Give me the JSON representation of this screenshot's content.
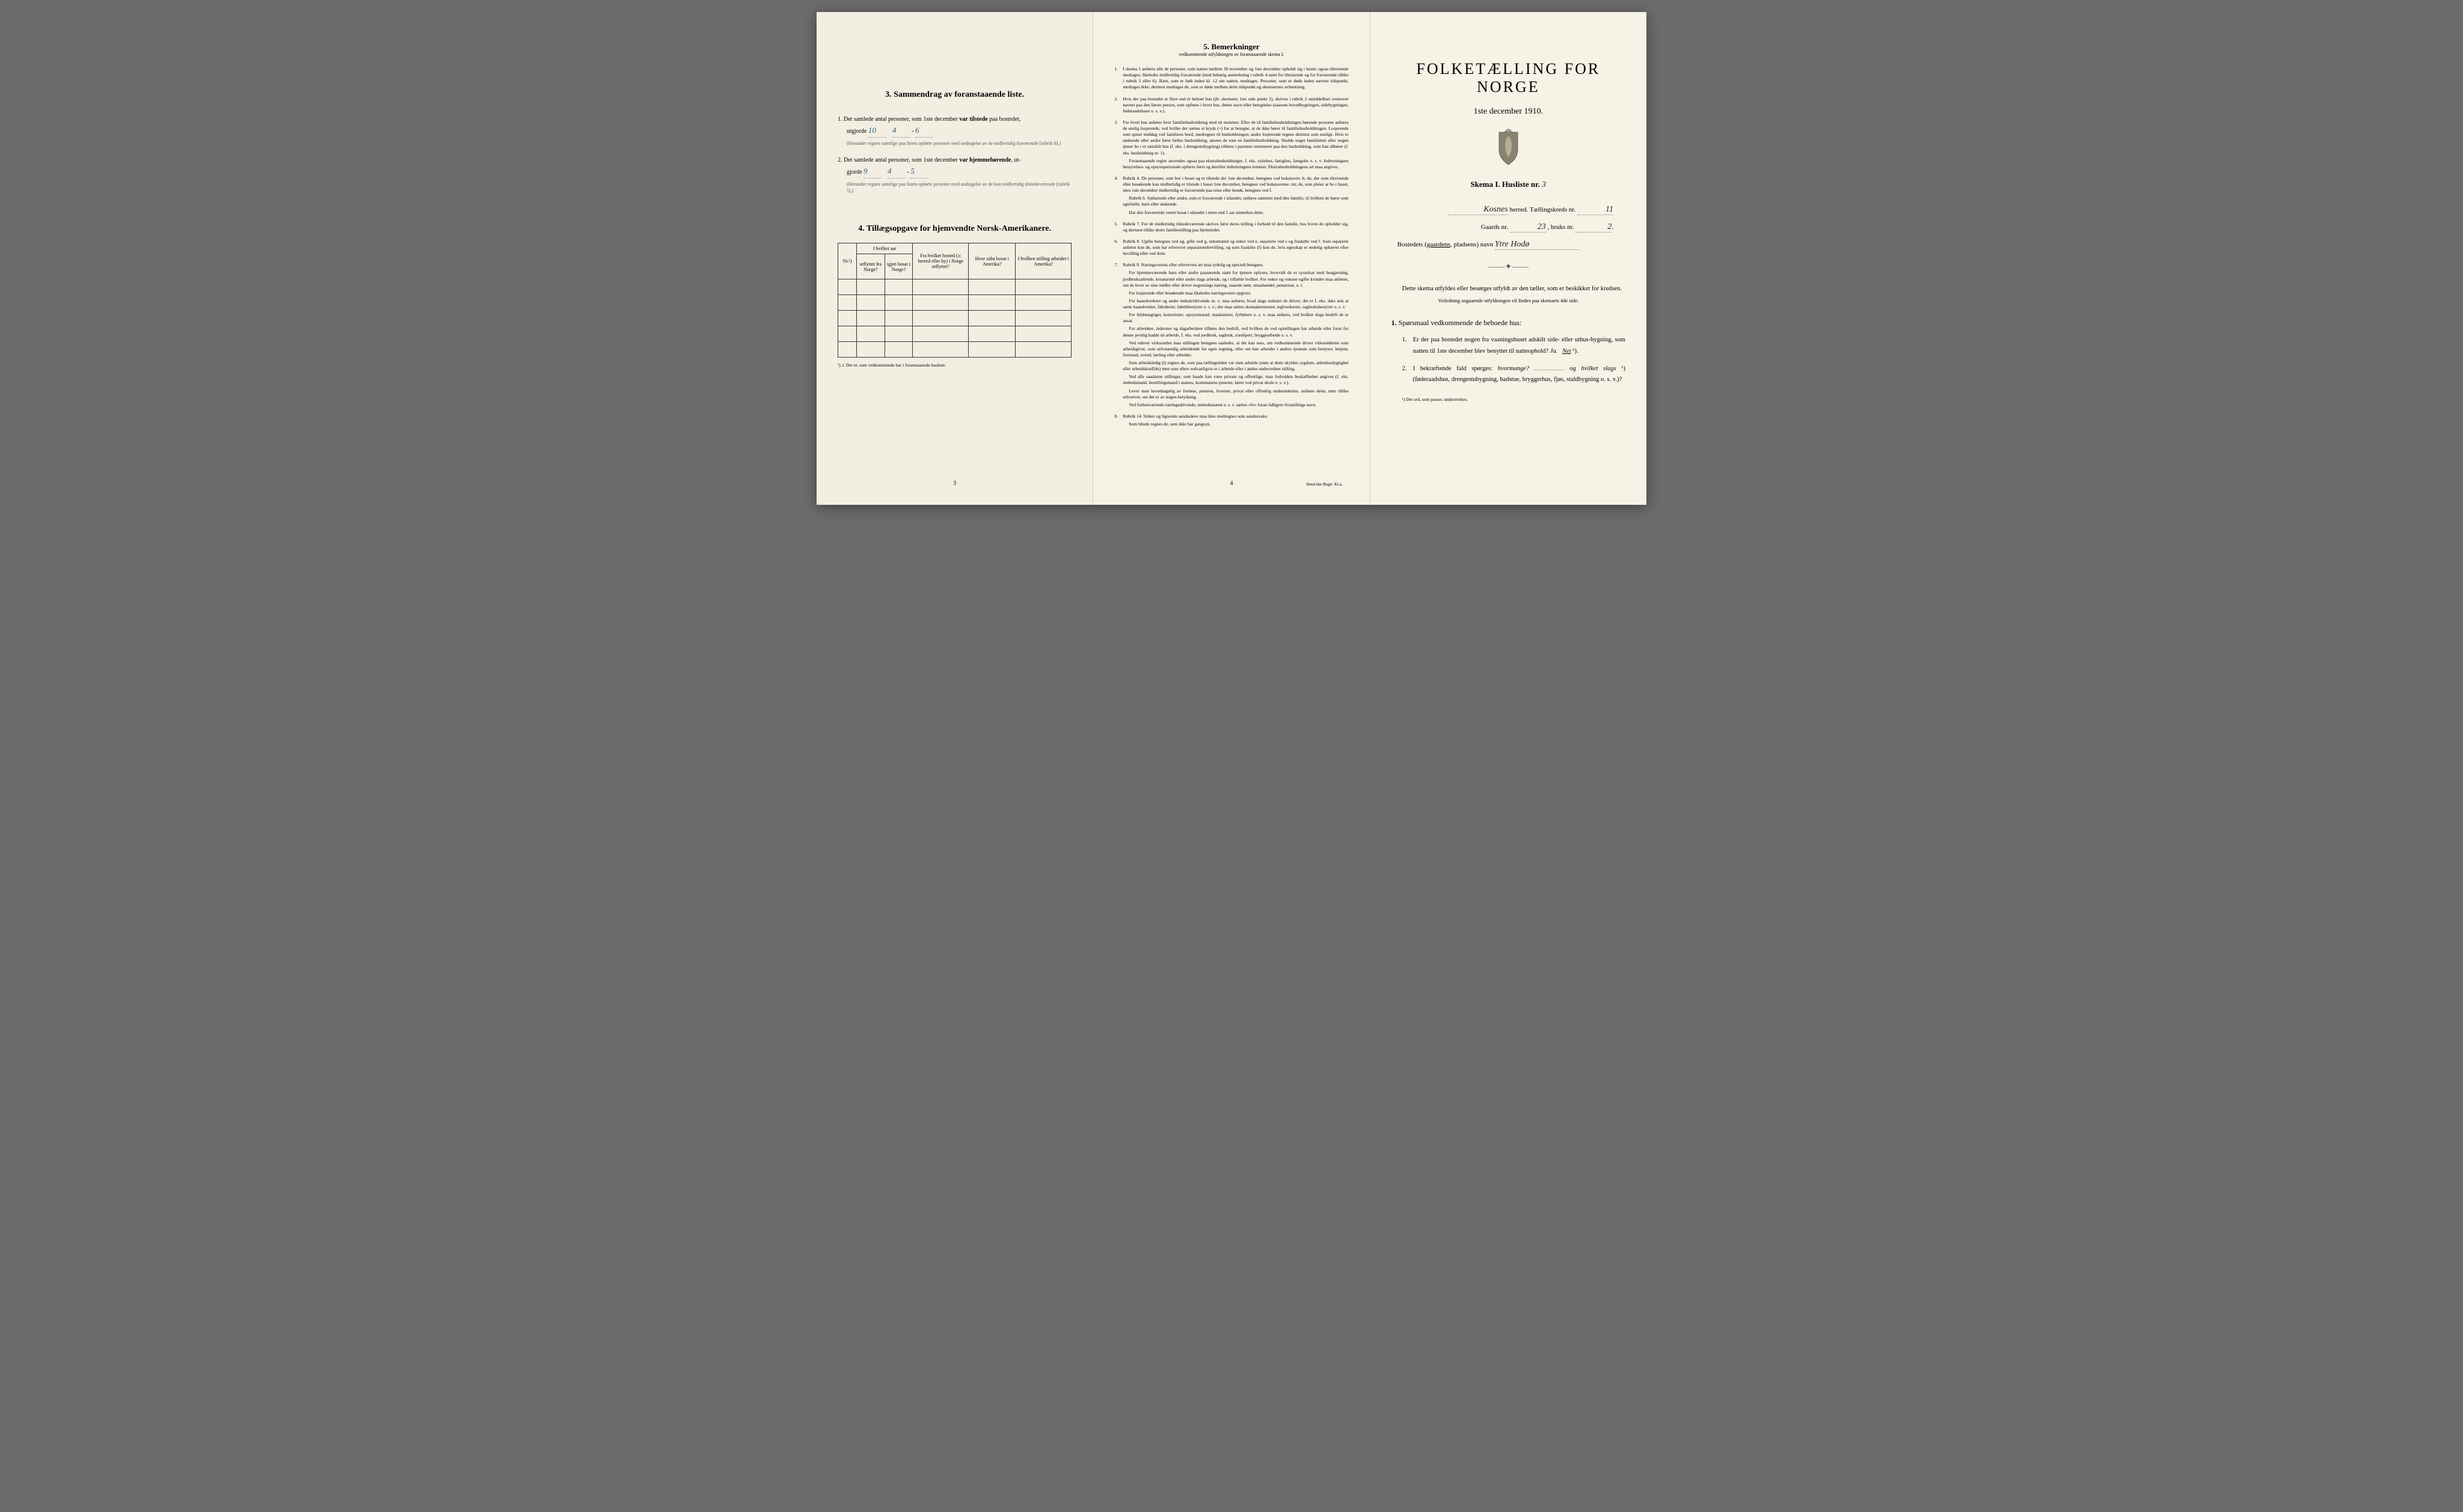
{
  "page1": {
    "section3": {
      "heading": "3.   Sammendrag av foranstaaende liste.",
      "item1_prefix": "1.  Det samlede antal personer, som 1ste december ",
      "item1_bold": "var tilstede",
      "item1_suffix": " paa bostedet,",
      "item1_line2_prefix": "utgjorde ",
      "item1_val1": "10",
      "item1_val2": "4",
      "item1_val3": "6",
      "item1_fine": "(Herunder regnes samtlige paa listen opførte personer med undtagelse av de midlertidig fraværende [rubrik 6].)",
      "item2_prefix": "2.  Det samlede antal personer, som 1ste december ",
      "item2_bold": "var hjemmehørende",
      "item2_suffix": ", ut-",
      "item2_line2_prefix": "gjorde ",
      "item2_val1": "9",
      "item2_val2": "4",
      "item2_val3": "5",
      "item2_fine": "(Herunder regnes samtlige paa listen opførte personer med undtagelse av de kun midlertidig tilstedeværende [rubrik 5].)"
    },
    "section4": {
      "heading": "4.   Tillægsopgave for hjemvendte Norsk-Amerikanere.",
      "col1": "Nr.¹)",
      "col2_group": "I hvilket aar",
      "col2a": "utflyttet fra Norge?",
      "col2b": "igjen bosat i Norge?",
      "col3": "Fra hvilket bosted (ɔ: herred eller by) i Norge utflyttet?",
      "col4": "Hvor sidst bosat i Amerika?",
      "col5": "I hvilken stilling arbeidet i Amerika?",
      "footnote": "¹) ɔ: Det nr. som vedkommende har i foranstaaende husliste."
    },
    "pagenum": "3"
  },
  "page2": {
    "heading": "5.   Bemerkninger",
    "subtitle": "vedkommende utfyldningen av foranstaaende skema I.",
    "items": [
      {
        "n": "1.",
        "paras": [
          "I skema 1 anføres alle de personer, som natten mellem 30 november og 1ste december opholdt sig i huset; ogsaa tilreisende medtages; likeledes midlertidig fraværende (med behørig anmerkning i rubrik 4 samt for tilreisende og for fraværende tillike i rubrik 5 eller 6). Barn, som er født inden kl. 12 om natten, medtages. Personer, som er døde inden nævnte tidspunkt, medtages ikke; derimot medtages de, som er døde mellem dette tidspunkt og skemaernes avhentning."
        ]
      },
      {
        "n": "2.",
        "paras": [
          "Hvis der paa bostedet er flere end ét beboet hus (jfr. skemaets 1ste side punkt 2), skrives i rubrik 2 umiddelbart ovenover navnet paa den første person, som opføres i hvert hus, dettes navn eller betegnelse (saasom hovedbygningen, sidebygningen, føderaadshuset o. s. v.)."
        ]
      },
      {
        "n": "3.",
        "paras": [
          "For hvert hus anføres hver familiehusholdning med sit nummer. Efter de til familiehusholdningen hørende personer anføres de enslig losjerende, ved hvilke der sættes et kryds (×) for at betegne, at de ikke hører til familiehusholdningen. Losjerende som spiser middag ved familiens bord, medregnes til husholdningen; andre losjerende regnes derimot som enslige. Hvis to søskende eller andre fører fælles husholdning, ansees de som en familiehusholdning. Skulde noget familielem eller nogen tjener bo i et særskilt hus (f. eks. i drengestubygning) tilføies i parentes nummeret paa den husholdning, som han tilhører (f. eks. husholdning nr. 1).",
          "Foranstaaende regler anvendes ogsaa paa ekstrahusholdninger, f. eks. sykehus, fattighus, fængsler o. s. v. Indretningens bestyrelses- og opsynspersonale opføres først og derefter indretningens lemmer. Ekstrahusholdningens art maa angives."
        ]
      },
      {
        "n": "4.",
        "paras": [
          "Rubrik 4. De personer, som bor i huset og er tilstede der 1ste december, betegnes ved bokstaven: b; de, der som tilreisende eller besøkende kun midlertidig er tilstede i huset 1ste december, betegnes ved bokstaverne: mt; de, som pleier at bo i huset, men 1ste december midlertidig er fraværende paa reise eller besøk, betegnes ved f.",
          "Rubrik 6. Sjøfarende eller andre, som er fraværende i utlandet, opføres sammen med den familie, til hvilken de hører som egtefælle, barn eller søskende.",
          "Har den fraværende været bosat i utlandet i mere end 1 aar anmerkes dette."
        ]
      },
      {
        "n": "5.",
        "paras": [
          "Rubrik 7. For de midlertidig tilstedeværende skrives først deres stilling i forhold til den familie, hos hvem de opholder sig, og dernæst tillike deres familiestilling paa hjemstedet."
        ]
      },
      {
        "n": "6.",
        "paras": [
          "Rubrik 8. Ugifte betegnes ved ug, gifte ved g, enkemænd og enker ved e, separerte ved s og fraskilte ved f. Som separerte anføres kun de, som har erhvervet separationsbevilling, og som fraskilte (f) kun de, hvis egteskap er endelig ophævet efter bevilling eller ved dom."
        ]
      },
      {
        "n": "7.",
        "paras": [
          "Rubrik 9. Næringsveiens eller erhvervets art maa tydelig og specielt betegnes.",
          "For hjemmeværende barn eller andre paarørende samt for tjenere oplyses, hvorvidt de er sysselsat med husgjerning, jordbruksarbeide, kreaturstel eller andet slags arbeide, og i tilfælde hvilket. For enker og voksne ugifte kvinder maa anføres, om de lever av sine midler eller driver nogenslags næring, saasom søm, smaahandel, pensionat, o. l.",
          "For losjerende eller besøkende maa likeledes næringsveien opgives.",
          "For haandverkere og andre industridrivende m. v. maa anføres, hvad slags industri de driver; det er f. eks. ikke nok at sætte haandverker, fabrikeier, fabrikbestyrer o. s. v.; der maa sættes skomakermester, teglverkseier, sagbruksbestyrer o. s. v.",
          "For fuldmægtiger, kontorister, opsynsmænd, maskinister, fyrbøtere o. s. v. maa anføres, ved hvilket slags bedrift de er ansat.",
          "For arbeidere, inderster og dagarbeidere tilføies den bedrift, ved hvilken de ved optællingen har arbeide eller forut for denne jevnlig hadde sit arbeide, f. eks. ved jordbruk, sagbruk, træsliperi, bryggearbeide o. s. v.",
          "Ved enhver virksomhet maa stillingen betegnes saaledes, at det kan sees, om vedkommende driver virksomheten som arbeidsgiver, som selvstændig arbeidende for egen regning, eller om han arbeider i andres tjeneste som bestyrer, betjent, formand, svend, lærling eller arbeider.",
          "Som arbeidsledig (l) regnes de, som paa tællingstiden var uten arbeide (uten at dette skyldes sygdom, arbeidsudygtighet eller arbeidskonflikt) men som ellers sedvanligvis er i arbeide eller i anden underordnet stilling.",
          "Ved alle saadanne stillinger, som baade kan være private og offentlige, maa forholdets beskaffenhet angives (f. eks. embedsmand, bestillingsmand i statens, kommunens tjeneste, lærer ved privat skole o. s. v.).",
          "Lever man hovedsagelig av formue, pension, livrente, privat eller offentlig understøttelse, anføres dette, men tillike erhvervet, om det er av nogen betydning.",
          "Ved forhenværende næringsdrivende, embedsmænd o. s. v. sættes «fv» foran tidligere livsstillings navn."
        ]
      },
      {
        "n": "8.",
        "paras": [
          "Rubrik 14. Sinker og lignende aandssløve maa ikke medregnes som aandssvake.",
          "Som blinde regnes de, som ikke har gangsyn."
        ]
      }
    ],
    "pagenum": "4",
    "printer": "Steen'ske Bogtr. Kr.a."
  },
  "page3": {
    "title": "FOLKETÆLLING FOR NORGE",
    "date": "1ste december 1910.",
    "skema_prefix": "Skema I.   Husliste nr. ",
    "skema_nr": "3",
    "herred_hw": "Kosnes",
    "herred_label": " herred.  Tællingskreds nr. ",
    "kreds_nr": "11",
    "gaards_label": "Gaards nr. ",
    "gaards_nr": "23",
    "bruks_label": ", bruks nr. ",
    "bruks_nr": "2",
    "bosted_label": "Bostedets (gaardens, pladsens) navn ",
    "bosted_strike": "gaardens",
    "bosted_hw": "Ytre Hodø",
    "body1": "Dette skema utfyldes eller besørges utfyldt av den tæller, som er beskikket for kredsen.",
    "veiledning": "Veiledning angaaende utfyldningen vil findes paa skemaets 4de side.",
    "q_head_num": "1.",
    "q_head": "Spørsmaal vedkommende de beboede hus:",
    "q1": {
      "n": "1.",
      "text_a": "Er der paa bostedet nogen fra vaaningshuset adskilt side- eller uthus-bygning, som natten til 1ste december blev benyttet til natteophold?   ",
      "ja": "Ja.",
      "nei": "Nei",
      "sup": " ¹)."
    },
    "q2": {
      "n": "2.",
      "text_a": "I bekræftende fald spørges: ",
      "hvormange": "hvormange?",
      "gap": "            ",
      "og": "og hvilket slags",
      "sup": " ¹)",
      "text_b": "(føderaadshus, drengestubygning, badstue, bryggerhus, fjøs, staldbygning o. s. v.)?"
    },
    "footnote": "¹) Det ord, som passer, understrekes."
  },
  "colors": {
    "paper": "#f4f0e4",
    "ink": "#1a1a1a",
    "handwriting_blue": "#2a5a7a",
    "handwriting_dark": "#222222"
  }
}
